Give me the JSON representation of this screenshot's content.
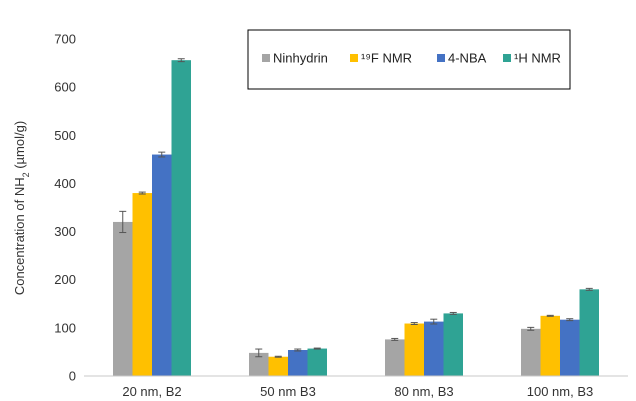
{
  "chart_data": {
    "type": "bar",
    "categories": [
      "20 nm, B2",
      "50 nm B3",
      "80 nm, B3",
      "100 nm, B3"
    ],
    "series": [
      {
        "name": "Ninhydrin",
        "color": "#A5A5A5",
        "values": [
          320,
          48,
          76,
          98
        ],
        "errors": [
          22,
          8,
          2,
          3
        ]
      },
      {
        "name": "¹⁹F NMR",
        "color": "#FFC000",
        "values": [
          380,
          40,
          109,
          125
        ],
        "errors": [
          2,
          1,
          2,
          1
        ]
      },
      {
        "name": "4-NBA",
        "color": "#4472C4",
        "values": [
          460,
          54,
          113,
          117
        ],
        "errors": [
          5,
          2,
          5,
          2
        ]
      },
      {
        "name": "¹H NMR",
        "color": "#2FA394",
        "values": [
          656,
          57,
          130,
          180
        ],
        "errors": [
          3,
          1,
          2,
          2
        ]
      }
    ],
    "ylabel_text": "Concentration of NH",
    "ylabel_sub": "2",
    "ylabel_unit": " (µmol/g)",
    "ylim": [
      0,
      700
    ],
    "yticks": [
      0,
      100,
      200,
      300,
      400,
      500,
      600,
      700
    ],
    "grid": false,
    "legend_position": "top-right"
  }
}
